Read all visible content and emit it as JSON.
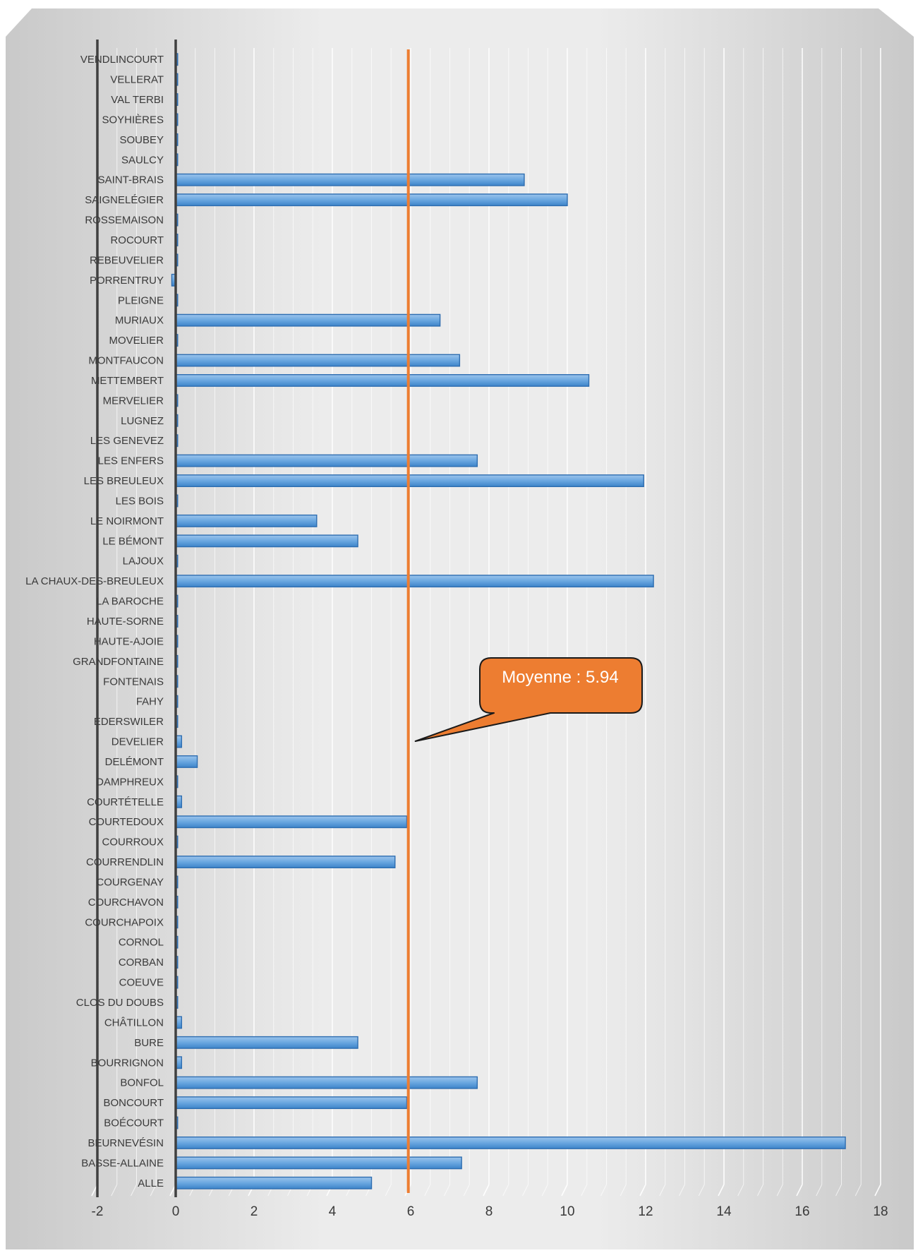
{
  "chart_data": {
    "type": "bar",
    "orientation": "horizontal",
    "title": "",
    "xlabel": "",
    "ylabel": "",
    "xlim": [
      -2,
      18
    ],
    "xticks": [
      -2,
      0,
      2,
      4,
      6,
      8,
      10,
      12,
      14,
      16,
      18
    ],
    "grid": true,
    "legend": "none",
    "bar_color": "#5b9bd5",
    "categories": [
      "ALLE",
      "BASSE-ALLAINE",
      "BEURNEVÉSIN",
      "BOÉCOURT",
      "BONCOURT",
      "BONFOL",
      "BOURRIGNON",
      "BURE",
      "CHÂTILLON",
      "CLOS DU DOUBS",
      "COEUVE",
      "CORBAN",
      "CORNOL",
      "COURCHAPOIX",
      "COURCHAVON",
      "COURGENAY",
      "COURRENDLIN",
      "COURROUX",
      "COURTEDOUX",
      "COURTÉTELLE",
      "DAMPHREUX",
      "DELÉMONT",
      "DEVELIER",
      "EDERSWILER",
      "FAHY",
      "FONTENAIS",
      "GRANDFONTAINE",
      "HAUTE-AJOIE",
      "HAUTE-SORNE",
      "LA BAROCHE",
      "LA CHAUX-DES-BREULEUX",
      "LAJOUX",
      "LE BÉMONT",
      "LE NOIRMONT",
      "LES BOIS",
      "LES BREULEUX",
      "LES ENFERS",
      "LES GENEVEZ",
      "LUGNEZ",
      "MERVELIER",
      "METTEMBERT",
      "MONTFAUCON",
      "MOVELIER",
      "MURIAUX",
      "PLEIGNE",
      "PORRENTRUY",
      "REBEUVELIER",
      "ROCOURT",
      "ROSSEMAISON",
      "SAIGNELÉGIER",
      "SAINT-BRAIS",
      "SAULCY",
      "SOUBEY",
      "SOYHIÈRES",
      "VAL TERBI",
      "VELLERAT",
      "VENDLINCOURT"
    ],
    "values": [
      5.0,
      7.3,
      17.1,
      0.05,
      5.9,
      7.7,
      0.15,
      4.65,
      0.15,
      0.05,
      0.05,
      0.05,
      0.05,
      0.05,
      0.05,
      0.05,
      5.6,
      0.05,
      5.9,
      0.15,
      0.05,
      0.55,
      0.15,
      0.05,
      0.05,
      0.05,
      0.05,
      0.05,
      0.05,
      0.05,
      12.2,
      0.05,
      4.65,
      3.6,
      0.05,
      11.95,
      7.7,
      0.05,
      0.05,
      0.05,
      10.55,
      7.25,
      0.05,
      6.75,
      0.05,
      -0.1,
      0.05,
      0.05,
      0.05,
      10.0,
      8.9,
      0.05,
      0.05,
      0.05,
      0.05,
      0.05,
      0.05
    ],
    "reference_line": {
      "value": 5.94,
      "color": "#ed7d31"
    },
    "annotation": {
      "text": "Moyenne : 5.94",
      "color": "#ed7d31"
    }
  }
}
